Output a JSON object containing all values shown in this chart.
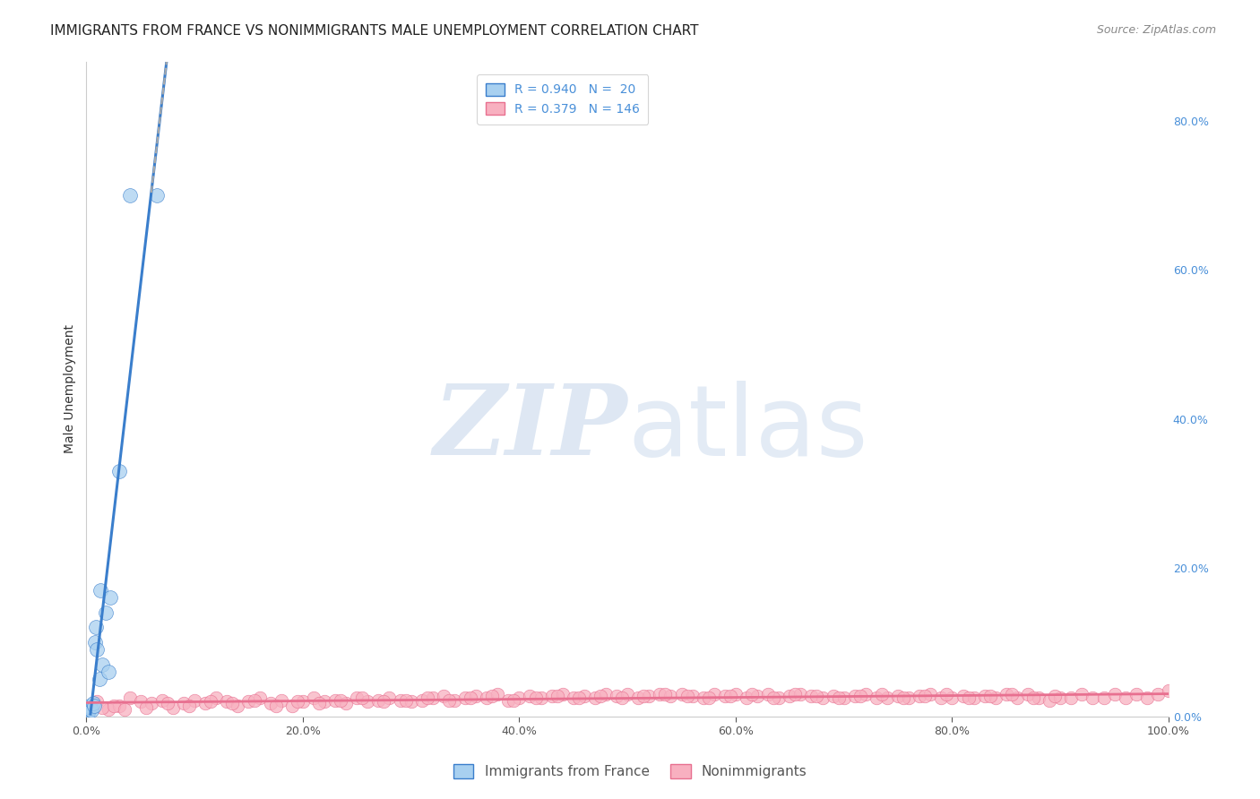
{
  "title": "IMMIGRANTS FROM FRANCE VS NONIMMIGRANTS MALE UNEMPLOYMENT CORRELATION CHART",
  "source": "Source: ZipAtlas.com",
  "ylabel": "Male Unemployment",
  "xlim": [
    0,
    1.0
  ],
  "ylim": [
    0,
    0.88
  ],
  "xticks": [
    0.0,
    0.2,
    0.4,
    0.6,
    0.8,
    1.0
  ],
  "xtick_labels": [
    "0.0%",
    "20.0%",
    "40.0%",
    "60.0%",
    "80.0%",
    "100.0%"
  ],
  "yticks_right": [
    0.0,
    0.2,
    0.4,
    0.6,
    0.8
  ],
  "ytick_labels_right": [
    "0.0%",
    "20.0%",
    "40.0%",
    "60.0%",
    "80.0%"
  ],
  "blue_R": 0.94,
  "blue_N": 20,
  "pink_R": 0.379,
  "pink_N": 146,
  "blue_color": "#A8D0F0",
  "pink_color": "#F8B0C0",
  "blue_line_color": "#3A7ECC",
  "pink_line_color": "#E87090",
  "grid_color": "#DDDDDD",
  "background_color": "#FFFFFF",
  "blue_scatter_x": [
    0.001,
    0.002,
    0.003,
    0.003,
    0.004,
    0.005,
    0.006,
    0.007,
    0.008,
    0.009,
    0.01,
    0.012,
    0.013,
    0.015,
    0.018,
    0.02,
    0.022,
    0.03,
    0.04,
    0.065
  ],
  "blue_scatter_y": [
    0.005,
    0.008,
    0.01,
    0.015,
    0.012,
    0.008,
    0.018,
    0.015,
    0.1,
    0.12,
    0.09,
    0.05,
    0.17,
    0.07,
    0.14,
    0.06,
    0.16,
    0.33,
    0.7,
    0.7
  ],
  "pink_scatter_x": [
    0.01,
    0.02,
    0.03,
    0.04,
    0.05,
    0.06,
    0.07,
    0.08,
    0.09,
    0.1,
    0.11,
    0.12,
    0.13,
    0.14,
    0.15,
    0.16,
    0.17,
    0.18,
    0.19,
    0.2,
    0.21,
    0.22,
    0.23,
    0.24,
    0.25,
    0.26,
    0.27,
    0.28,
    0.29,
    0.3,
    0.31,
    0.32,
    0.33,
    0.34,
    0.35,
    0.36,
    0.37,
    0.38,
    0.39,
    0.4,
    0.41,
    0.42,
    0.43,
    0.44,
    0.45,
    0.46,
    0.47,
    0.48,
    0.49,
    0.5,
    0.51,
    0.52,
    0.53,
    0.54,
    0.55,
    0.56,
    0.57,
    0.58,
    0.59,
    0.6,
    0.61,
    0.62,
    0.63,
    0.64,
    0.65,
    0.66,
    0.67,
    0.68,
    0.69,
    0.7,
    0.71,
    0.72,
    0.73,
    0.74,
    0.75,
    0.76,
    0.77,
    0.78,
    0.79,
    0.8,
    0.81,
    0.82,
    0.83,
    0.84,
    0.85,
    0.86,
    0.87,
    0.88,
    0.89,
    0.9,
    0.91,
    0.92,
    0.93,
    0.94,
    0.95,
    0.96,
    0.97,
    0.98,
    0.99,
    1.0,
    0.015,
    0.025,
    0.035,
    0.055,
    0.075,
    0.095,
    0.115,
    0.135,
    0.155,
    0.175,
    0.195,
    0.215,
    0.235,
    0.255,
    0.275,
    0.295,
    0.315,
    0.335,
    0.355,
    0.375,
    0.395,
    0.415,
    0.435,
    0.455,
    0.475,
    0.495,
    0.515,
    0.535,
    0.555,
    0.575,
    0.595,
    0.615,
    0.635,
    0.655,
    0.675,
    0.695,
    0.715,
    0.735,
    0.755,
    0.775,
    0.795,
    0.815,
    0.835,
    0.855,
    0.875,
    0.895
  ],
  "pink_scatter_y": [
    0.02,
    0.01,
    0.015,
    0.025,
    0.02,
    0.018,
    0.022,
    0.012,
    0.018,
    0.022,
    0.018,
    0.025,
    0.02,
    0.015,
    0.02,
    0.025,
    0.018,
    0.022,
    0.015,
    0.02,
    0.025,
    0.02,
    0.022,
    0.018,
    0.025,
    0.02,
    0.022,
    0.025,
    0.022,
    0.02,
    0.022,
    0.025,
    0.028,
    0.022,
    0.025,
    0.028,
    0.025,
    0.03,
    0.022,
    0.025,
    0.028,
    0.025,
    0.028,
    0.03,
    0.025,
    0.028,
    0.025,
    0.03,
    0.028,
    0.03,
    0.025,
    0.028,
    0.03,
    0.028,
    0.03,
    0.028,
    0.025,
    0.03,
    0.028,
    0.03,
    0.025,
    0.028,
    0.03,
    0.025,
    0.028,
    0.03,
    0.028,
    0.025,
    0.028,
    0.025,
    0.028,
    0.03,
    0.025,
    0.025,
    0.028,
    0.025,
    0.028,
    0.03,
    0.025,
    0.025,
    0.028,
    0.025,
    0.028,
    0.025,
    0.03,
    0.025,
    0.03,
    0.025,
    0.022,
    0.025,
    0.025,
    0.03,
    0.025,
    0.025,
    0.03,
    0.025,
    0.03,
    0.025,
    0.03,
    0.035,
    0.012,
    0.015,
    0.01,
    0.012,
    0.018,
    0.015,
    0.02,
    0.018,
    0.022,
    0.015,
    0.02,
    0.018,
    0.022,
    0.025,
    0.02,
    0.022,
    0.025,
    0.022,
    0.025,
    0.028,
    0.022,
    0.025,
    0.028,
    0.025,
    0.028,
    0.025,
    0.028,
    0.03,
    0.028,
    0.025,
    0.028,
    0.03,
    0.025,
    0.03,
    0.028,
    0.025,
    0.028,
    0.03,
    0.025,
    0.028,
    0.03,
    0.025,
    0.028,
    0.03,
    0.025,
    0.028
  ],
  "title_fontsize": 11,
  "source_fontsize": 9,
  "axis_label_fontsize": 10,
  "tick_fontsize": 9,
  "legend_fontsize": 10
}
